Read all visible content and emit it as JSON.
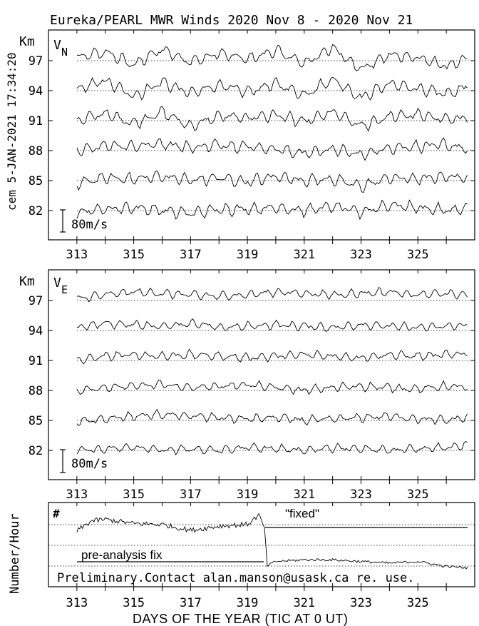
{
  "title": "Eureka/PEARL MWR Winds 2020 Nov  8 - 2020 Nov 21",
  "side_label": "cem 5-JAN-2021 17:34:20",
  "footer_label": "DAYS OF THE YEAR (TIC AT 0 UT)",
  "chart_data": [
    {
      "type": "line",
      "panel": "V_N",
      "component_label": "V",
      "component_sub": "N",
      "ylabel": "Km",
      "scale_label": "80m/s",
      "x_ticks": [
        313,
        315,
        317,
        319,
        321,
        323,
        325
      ],
      "xlim": [
        312,
        327
      ],
      "heights_km": [
        97,
        94,
        91,
        88,
        85,
        82
      ],
      "series": [
        {
          "name": "97",
          "x": [
            313,
            314,
            315,
            316,
            317,
            318,
            319,
            320,
            321,
            322,
            323,
            324,
            325,
            326,
            327
          ],
          "y": [
            10,
            30,
            -15,
            40,
            -5,
            25,
            5,
            35,
            -10,
            45,
            -30,
            20,
            10,
            -20,
            15
          ]
        },
        {
          "name": "94",
          "x": [
            313,
            314,
            315,
            316,
            317,
            318,
            319,
            320,
            321,
            322,
            323,
            324,
            325,
            326,
            327
          ],
          "y": [
            5,
            35,
            -20,
            30,
            -10,
            20,
            -5,
            25,
            -15,
            40,
            -25,
            25,
            5,
            -10,
            20
          ]
        },
        {
          "name": "91",
          "x": [
            313,
            314,
            315,
            316,
            317,
            318,
            319,
            320,
            321,
            322,
            323,
            324,
            325,
            326,
            327
          ],
          "y": [
            0,
            25,
            -10,
            30,
            -20,
            15,
            10,
            20,
            -5,
            30,
            -20,
            15,
            20,
            5,
            10
          ]
        },
        {
          "name": "88",
          "x": [
            313,
            314,
            315,
            316,
            317,
            318,
            319,
            320,
            321,
            322,
            323,
            324,
            325,
            326,
            327
          ],
          "y": [
            -5,
            20,
            15,
            25,
            10,
            20,
            15,
            5,
            -10,
            5,
            -15,
            10,
            15,
            20,
            0
          ]
        },
        {
          "name": "85",
          "x": [
            313,
            314,
            315,
            316,
            317,
            318,
            319,
            320,
            321,
            322,
            323,
            324,
            325,
            326,
            327
          ],
          "y": [
            -10,
            10,
            5,
            15,
            0,
            10,
            -5,
            15,
            0,
            5,
            -20,
            10,
            5,
            15,
            5
          ]
        },
        {
          "name": "82",
          "x": [
            313,
            314,
            315,
            316,
            317,
            318,
            319,
            320,
            321,
            322,
            323,
            324,
            325,
            326,
            327
          ],
          "y": [
            -5,
            5,
            10,
            0,
            -10,
            5,
            5,
            10,
            0,
            15,
            -5,
            20,
            10,
            0,
            10
          ]
        }
      ]
    },
    {
      "type": "line",
      "panel": "V_E",
      "component_label": "V",
      "component_sub": "E",
      "ylabel": "Km",
      "scale_label": "80m/s",
      "x_ticks": [
        313,
        315,
        317,
        319,
        321,
        323,
        325
      ],
      "xlim": [
        312,
        327
      ],
      "heights_km": [
        97,
        94,
        91,
        88,
        85,
        82
      ],
      "series": [
        {
          "name": "97",
          "x": [
            313,
            314,
            315,
            316,
            317,
            318,
            319,
            320,
            321,
            322,
            323,
            324,
            325,
            326,
            327
          ],
          "y": [
            5,
            20,
            30,
            25,
            20,
            15,
            20,
            30,
            25,
            20,
            25,
            30,
            20,
            25,
            15
          ]
        },
        {
          "name": "94",
          "x": [
            313,
            314,
            315,
            316,
            317,
            318,
            319,
            320,
            321,
            322,
            323,
            324,
            325,
            326,
            327
          ],
          "y": [
            10,
            25,
            20,
            15,
            25,
            10,
            15,
            20,
            15,
            10,
            20,
            15,
            10,
            15,
            20
          ]
        },
        {
          "name": "91",
          "x": [
            313,
            314,
            315,
            316,
            317,
            318,
            319,
            320,
            321,
            322,
            323,
            324,
            325,
            326,
            327
          ],
          "y": [
            0,
            15,
            20,
            15,
            20,
            15,
            10,
            15,
            20,
            15,
            10,
            20,
            15,
            20,
            25
          ]
        },
        {
          "name": "88",
          "x": [
            313,
            314,
            315,
            316,
            317,
            318,
            319,
            320,
            321,
            322,
            323,
            324,
            325,
            326,
            327
          ],
          "y": [
            0,
            10,
            15,
            20,
            10,
            15,
            20,
            10,
            0,
            10,
            15,
            10,
            5,
            15,
            10
          ]
        },
        {
          "name": "85",
          "x": [
            313,
            314,
            315,
            316,
            317,
            318,
            319,
            320,
            321,
            322,
            323,
            324,
            325,
            326,
            327
          ],
          "y": [
            -5,
            5,
            15,
            20,
            15,
            10,
            5,
            10,
            0,
            5,
            10,
            15,
            5,
            0,
            15
          ]
        },
        {
          "name": "82",
          "x": [
            313,
            314,
            315,
            316,
            317,
            318,
            319,
            320,
            321,
            322,
            323,
            324,
            325,
            326,
            327
          ],
          "y": [
            0,
            5,
            10,
            0,
            5,
            0,
            10,
            5,
            0,
            10,
            5,
            0,
            5,
            10,
            20
          ]
        }
      ]
    },
    {
      "type": "line",
      "panel": "count",
      "ylabel": "Number/Hour",
      "symbol_label": "#",
      "x_ticks": [
        313,
        315,
        317,
        319,
        321,
        323,
        325
      ],
      "xlim": [
        312,
        327
      ],
      "annotations": {
        "fixed": "\"fixed\"",
        "pre": "pre-analysis fix",
        "contact": "Preliminary.Contact alan.manson@usask.ca re. use."
      },
      "series": [
        {
          "name": "count",
          "x": [
            313,
            313.5,
            314,
            315,
            316,
            317,
            318,
            319,
            319.4,
            319.6,
            319.7,
            320,
            321,
            322,
            323,
            324,
            325,
            326,
            327
          ],
          "y": [
            0.66,
            0.78,
            0.8,
            0.75,
            0.74,
            0.67,
            0.72,
            0.74,
            0.85,
            0.7,
            0.25,
            0.3,
            0.32,
            0.32,
            0.3,
            0.28,
            0.3,
            0.24,
            0.22
          ]
        }
      ]
    }
  ]
}
